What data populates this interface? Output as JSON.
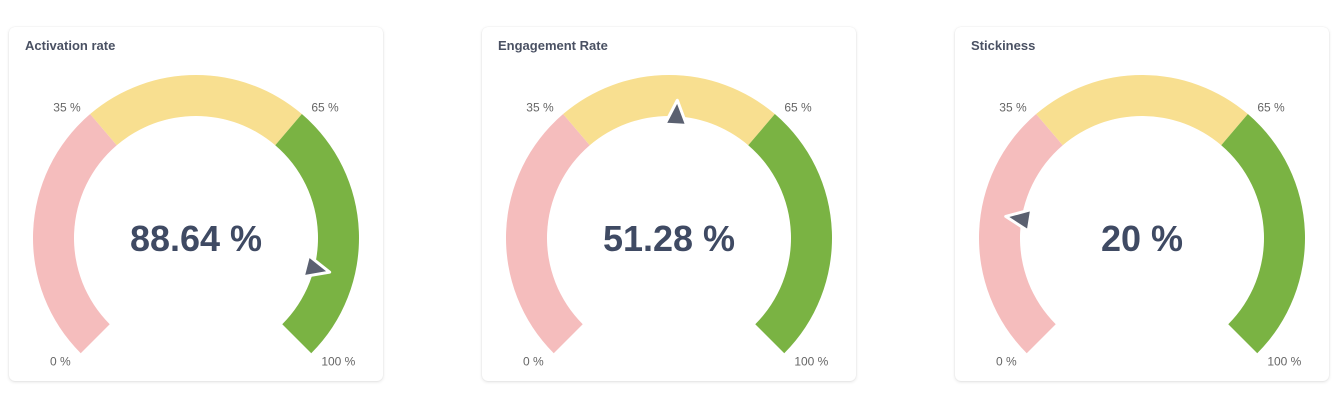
{
  "colors": {
    "low": "#f5bdbd",
    "mid": "#f8df90",
    "high": "#7ab343",
    "needle": "#5a6070",
    "value_text": "#3f4a63",
    "label_text": "#666666"
  },
  "chart_data": [
    {
      "type": "gauge",
      "title": "Activation rate",
      "value": 88.64,
      "value_label": "88.64 %",
      "range": [
        0,
        100
      ],
      "thresholds": [
        35,
        65
      ],
      "threshold_labels": [
        "0 %",
        "35 %",
        "65 %",
        "100 %"
      ]
    },
    {
      "type": "gauge",
      "title": "Engagement Rate",
      "value": 51.28,
      "value_label": "51.28 %",
      "range": [
        0,
        100
      ],
      "thresholds": [
        35,
        65
      ],
      "threshold_labels": [
        "0 %",
        "35 %",
        "65 %",
        "100 %"
      ]
    },
    {
      "type": "gauge",
      "title": "Stickiness",
      "value": 20,
      "value_label": "20 %",
      "range": [
        0,
        100
      ],
      "thresholds": [
        35,
        65
      ],
      "threshold_labels": [
        "0 %",
        "35 %",
        "65 %",
        "100 %"
      ]
    }
  ]
}
